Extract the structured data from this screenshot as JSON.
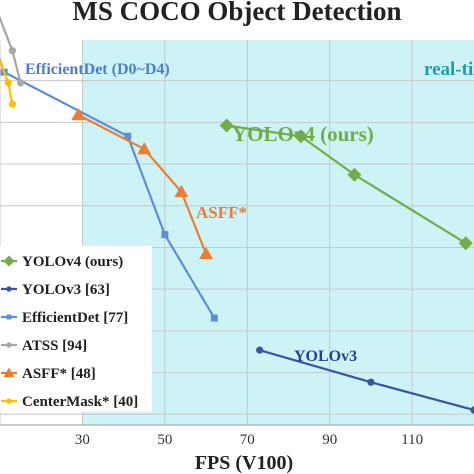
{
  "chart_data": {
    "type": "line",
    "title": "MS COCO Object Detection",
    "xlabel": "FPS (V100)",
    "ylabel": "",
    "xlim": [
      10,
      125
    ],
    "ylim": [
      29.5,
      47.5
    ],
    "x_ticks": [
      30,
      50,
      70,
      90,
      110
    ],
    "x_tick_labels": [
      "30",
      "50",
      "70",
      "90",
      "110"
    ],
    "realtime_region": {
      "x_from": 30,
      "label": "real-time"
    },
    "grid": {
      "vertical": true,
      "horizontal": true,
      "color": "#c8c8c8"
    },
    "legend_position": "bottom-left",
    "series": [
      {
        "name": "YOLOv4 (ours)",
        "color": "#70ad47",
        "marker": "diamond",
        "x": [
          65,
          83,
          96,
          123
        ],
        "y": [
          43.5,
          43.0,
          41.2,
          38.0
        ]
      },
      {
        "name": "YOLOv3 [63]",
        "color": "#3a55a5",
        "marker": "circle",
        "x": [
          73,
          100,
          125
        ],
        "y": [
          33.0,
          31.5,
          30.2
        ]
      },
      {
        "name": "EfficientDet [77]",
        "color": "#5b8fd6",
        "marker": "square",
        "x": [
          0,
          11,
          41,
          50,
          62
        ],
        "y": [
          52.0,
          46.0,
          43.0,
          38.4,
          34.5
        ]
      },
      {
        "name": "ATSS [94]",
        "color": "#a6a6a6",
        "marker": "circle",
        "x": [
          9,
          13,
          15
        ],
        "y": [
          49.0,
          47.0,
          45.5
        ]
      },
      {
        "name": "ASFF* [48]",
        "color": "#ed7d31",
        "marker": "triangle",
        "x": [
          29,
          45,
          54,
          60
        ],
        "y": [
          44.0,
          42.4,
          40.4,
          37.5
        ]
      },
      {
        "name": "CenterMask* [40]",
        "color": "#ffc000",
        "marker": "circle",
        "x": [
          9,
          12,
          13
        ],
        "y": [
          47.0,
          45.5,
          44.5
        ]
      }
    ],
    "annotations": [
      {
        "text": "EfficientDet (D0~D4)",
        "color": "#4a7fd0"
      },
      {
        "text": "YOLOv4 (ours)",
        "color": "#70ad47"
      },
      {
        "text": "ASFF*",
        "color": "#ed7d31"
      },
      {
        "text": "YOLOv3",
        "color": "#2b3f8f"
      }
    ]
  }
}
